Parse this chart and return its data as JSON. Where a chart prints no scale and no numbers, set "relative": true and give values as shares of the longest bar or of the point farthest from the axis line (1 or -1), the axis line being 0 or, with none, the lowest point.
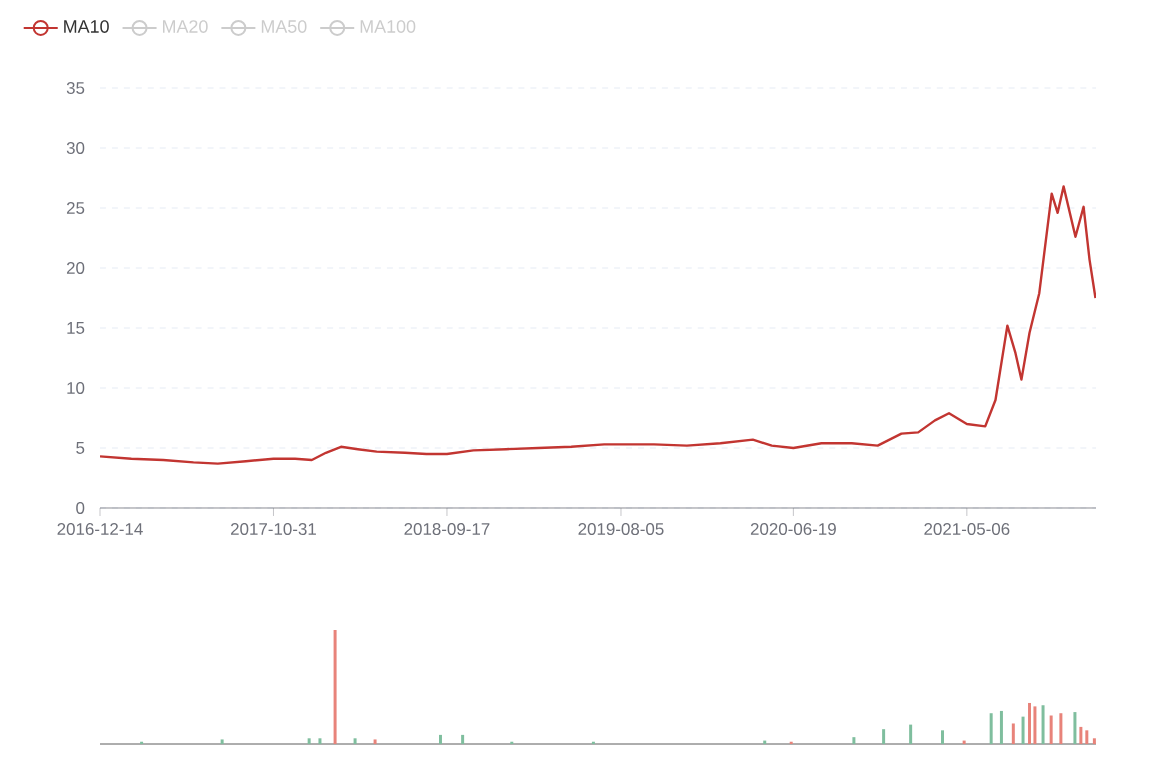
{
  "chart_data": [
    {
      "type": "line",
      "x": [
        "2016-12-14",
        "2017-02-10",
        "2017-04-10",
        "2017-06-05",
        "2017-07-20",
        "2017-09-10",
        "2017-10-31",
        "2017-12-10",
        "2018-01-10",
        "2018-02-05",
        "2018-03-05",
        "2018-04-05",
        "2018-05-10",
        "2018-07-01",
        "2018-08-10",
        "2018-09-17",
        "2018-11-05",
        "2019-01-05",
        "2019-03-05",
        "2019-05-05",
        "2019-07-05",
        "2019-08-05",
        "2019-10-05",
        "2019-12-05",
        "2020-02-05",
        "2020-04-05",
        "2020-05-10",
        "2020-06-19",
        "2020-08-10",
        "2020-10-05",
        "2020-11-22",
        "2021-01-05",
        "2021-02-05",
        "2021-03-08",
        "2021-04-03",
        "2021-05-06",
        "2021-06-09",
        "2021-06-28",
        "2021-07-20",
        "2021-08-04",
        "2021-08-15",
        "2021-08-30",
        "2021-09-17",
        "2021-10-10",
        "2021-10-21",
        "2021-11-01",
        "2021-11-23",
        "2021-12-08",
        "2021-12-19",
        "2021-12-30"
      ],
      "series": [
        {
          "name": "MA10",
          "color": "#c23531",
          "values": [
            4.3,
            4.1,
            4.0,
            3.8,
            3.7,
            3.9,
            4.1,
            4.1,
            4.0,
            4.6,
            5.1,
            4.9,
            4.7,
            4.6,
            4.5,
            4.5,
            4.8,
            4.9,
            5.0,
            5.1,
            5.3,
            5.3,
            5.3,
            5.2,
            5.4,
            5.7,
            5.2,
            5.0,
            5.4,
            5.4,
            5.2,
            6.2,
            6.3,
            7.3,
            7.9,
            7.0,
            6.8,
            9.0,
            15.2,
            12.9,
            10.7,
            14.6,
            17.9,
            26.2,
            24.6,
            26.8,
            22.6,
            25.1,
            20.7,
            17.5
          ]
        },
        {
          "name": "MA20",
          "color": "#cccccc",
          "values": [
            null,
            null,
            null,
            null,
            null,
            null,
            null,
            null,
            null,
            null,
            null,
            null,
            null,
            null,
            null,
            null,
            null,
            null,
            null,
            null,
            null,
            null,
            null,
            null,
            null,
            null,
            null,
            null,
            null,
            null,
            null,
            null,
            null,
            null,
            null,
            null,
            null,
            null,
            null,
            null,
            null,
            null,
            null,
            null,
            null,
            null,
            null,
            null,
            null,
            null
          ]
        },
        {
          "name": "MA50",
          "color": "#cccccc",
          "values": [
            null,
            null,
            null,
            null,
            null,
            null,
            null,
            null,
            null,
            null,
            null,
            null,
            null,
            null,
            null,
            null,
            null,
            null,
            null,
            null,
            null,
            null,
            null,
            null,
            null,
            null,
            null,
            null,
            null,
            null,
            null,
            null,
            null,
            null,
            null,
            null,
            null,
            null,
            null,
            null,
            null,
            null,
            null,
            null,
            null,
            null,
            null,
            null,
            null,
            null
          ]
        },
        {
          "name": "MA100",
          "color": "#cccccc",
          "values": [
            null,
            null,
            null,
            null,
            null,
            null,
            null,
            null,
            null,
            null,
            null,
            null,
            null,
            null,
            null,
            null,
            null,
            null,
            null,
            null,
            null,
            null,
            null,
            null,
            null,
            null,
            null,
            null,
            null,
            null,
            null,
            null,
            null,
            null,
            null,
            null,
            null,
            null,
            null,
            null,
            null,
            null,
            null,
            null,
            null,
            null,
            null,
            null,
            null,
            null
          ]
        }
      ],
      "xlim": [
        "2016-12-14",
        "2021-12-31"
      ],
      "xticks": [
        "2016-12-14",
        "2017-10-31",
        "2018-09-17",
        "2019-08-05",
        "2020-06-19",
        "2021-05-06"
      ],
      "ylim": [
        0,
        35
      ],
      "yticks": [
        0,
        5,
        10,
        15,
        20,
        25,
        30,
        35
      ],
      "grid": "y",
      "legend": "top left"
    },
    {
      "type": "bar",
      "relative": true,
      "xlim": [
        "2016-12-14",
        "2021-12-31"
      ],
      "x": [
        "2017-03-01",
        "2017-07-28",
        "2018-01-05",
        "2018-01-25",
        "2018-02-22",
        "2018-03-31",
        "2018-05-07",
        "2018-09-05",
        "2018-10-16",
        "2019-01-15",
        "2019-06-15",
        "2020-04-27",
        "2020-06-15",
        "2020-10-09",
        "2020-12-03",
        "2021-01-22",
        "2021-03-22",
        "2021-05-01",
        "2021-06-20",
        "2021-07-09",
        "2021-07-31",
        "2021-08-18",
        "2021-08-30",
        "2021-09-09",
        "2021-09-24",
        "2021-10-09",
        "2021-10-27",
        "2021-11-22",
        "2021-12-03",
        "2021-12-14",
        "2021-12-28"
      ],
      "values": [
        0.02,
        0.04,
        0.05,
        0.05,
        1.0,
        0.05,
        0.04,
        0.08,
        0.08,
        0.02,
        0.02,
        0.03,
        0.02,
        0.06,
        0.13,
        0.17,
        0.12,
        0.03,
        0.27,
        0.29,
        0.18,
        0.24,
        0.36,
        0.33,
        0.34,
        0.25,
        0.27,
        0.28,
        0.15,
        0.12,
        0.05
      ],
      "colors": [
        "#7fbe9e",
        "#7fbe9e",
        "#7fbe9e",
        "#7fbe9e",
        "#e8837a",
        "#7fbe9e",
        "#e8837a",
        "#7fbe9e",
        "#7fbe9e",
        "#7fbe9e",
        "#7fbe9e",
        "#7fbe9e",
        "#e8837a",
        "#7fbe9e",
        "#7fbe9e",
        "#7fbe9e",
        "#7fbe9e",
        "#e8837a",
        "#7fbe9e",
        "#7fbe9e",
        "#e8837a",
        "#7fbe9e",
        "#e8837a",
        "#e8837a",
        "#7fbe9e",
        "#e8837a",
        "#e8837a",
        "#7fbe9e",
        "#e8837a",
        "#e8837a",
        "#e8837a"
      ]
    }
  ]
}
